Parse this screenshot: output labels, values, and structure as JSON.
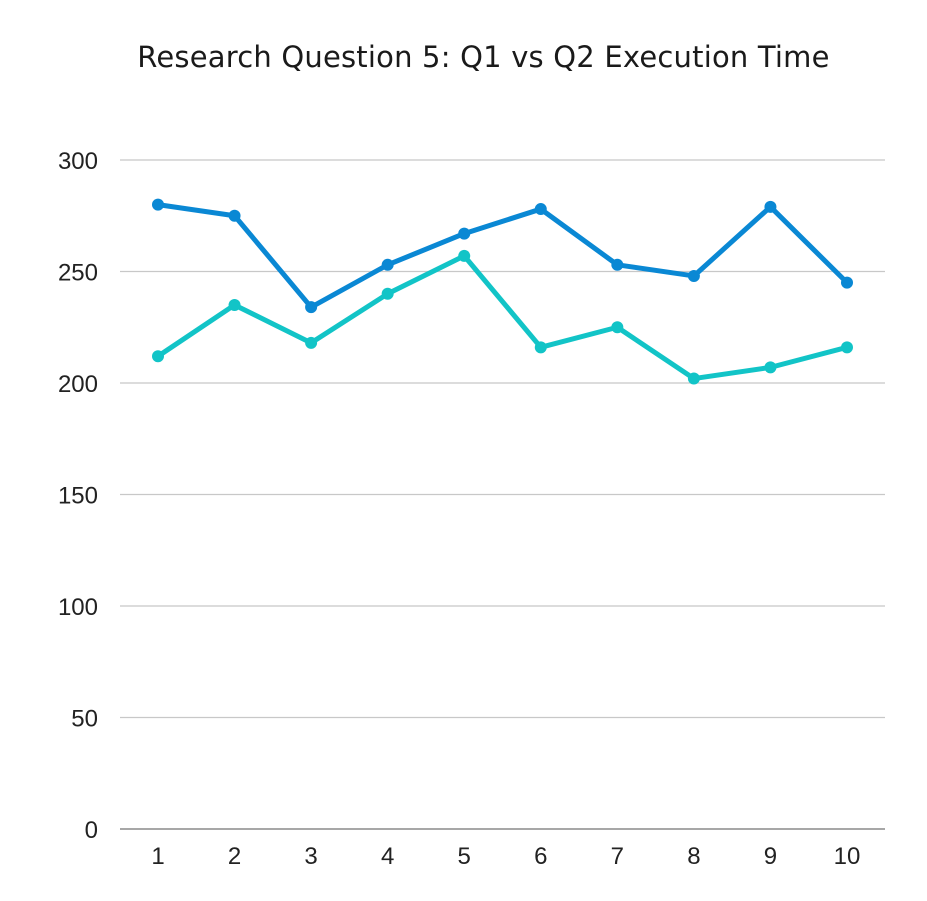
{
  "chart_data": {
    "type": "line",
    "title": "Research Question 5: Q1 vs Q2 Execution Time",
    "xlabel": "",
    "ylabel": "",
    "x": [
      "1",
      "2",
      "3",
      "4",
      "5",
      "6",
      "7",
      "8",
      "9",
      "10"
    ],
    "ylim": [
      0,
      300
    ],
    "yticks": [
      0,
      50,
      100,
      150,
      200,
      250,
      300
    ],
    "grid": true,
    "legend": "none",
    "series": [
      {
        "color": "#0a88d4",
        "values": [
          280,
          275,
          234,
          253,
          267,
          278,
          253,
          248,
          279,
          245
        ]
      },
      {
        "color": "#12c4c7",
        "values": [
          212,
          235,
          218,
          240,
          257,
          216,
          225,
          202,
          207,
          216
        ]
      }
    ]
  }
}
